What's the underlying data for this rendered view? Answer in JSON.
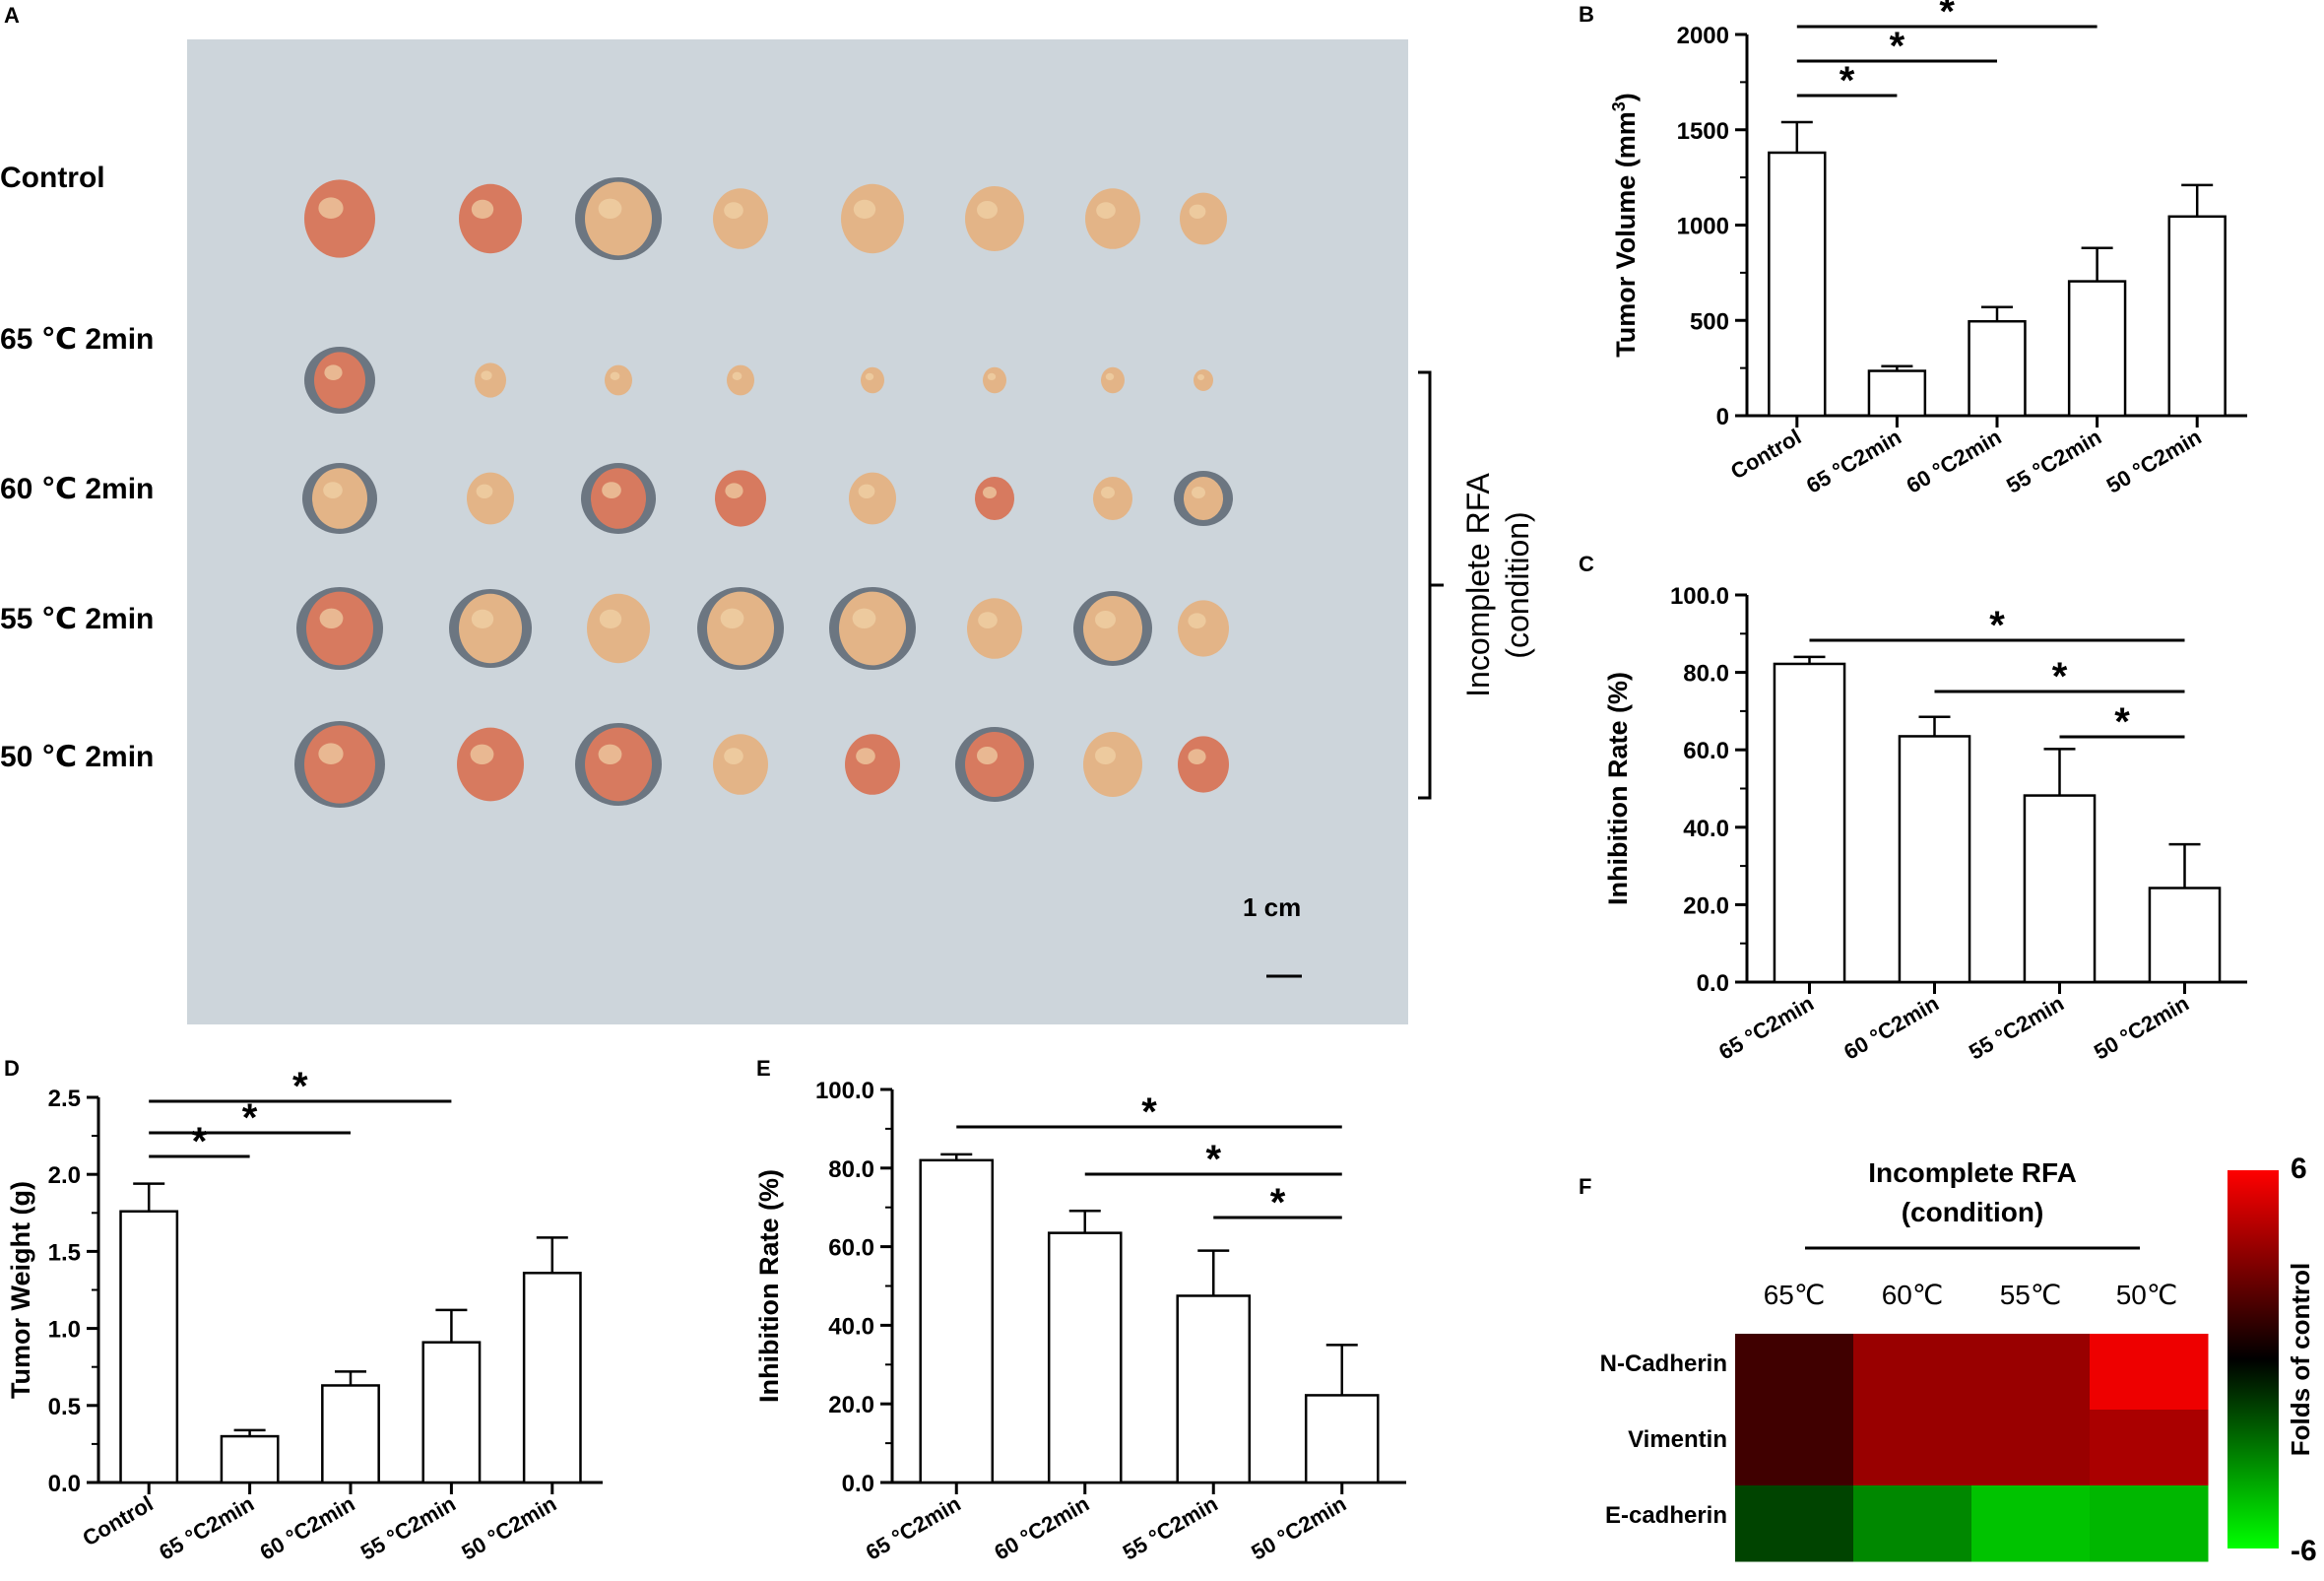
{
  "panels": {
    "A": {
      "letter": "A",
      "row_labels": [
        "Control",
        "65 ℃ 2min",
        "60 ℃ 2min",
        "55 ℃ 2min",
        "50 ℃ 2min"
      ],
      "bracket_label_line1": "Incomplete RFA",
      "bracket_label_line2": "(condition)",
      "scale_label": "1 cm",
      "colors": {
        "paper": "#cdd5db",
        "tumor": "#e3b487",
        "tumor_red": "#d77a5f",
        "shadow": "#4b5563"
      }
    },
    "F": {
      "letter": "F",
      "title_line1": "Incomplete RFA",
      "title_line2": "(condition)",
      "columns": [
        "65℃",
        "60℃",
        "55℃",
        "50℃"
      ],
      "rows": [
        "N-Cadherin",
        "Vimentin",
        "E-cadherin"
      ],
      "colorbar_label": "Folds of control",
      "colorbar_max": "6",
      "colorbar_min": "-6"
    }
  },
  "chart_data": [
    {
      "id": "B",
      "type": "bar",
      "letter": "B",
      "categories": [
        "Control",
        "65 °C2min",
        "60 °C2min",
        "55 °C2min",
        "50 °C2min"
      ],
      "values": [
        1380,
        235,
        495,
        705,
        1045
      ],
      "errors": [
        160,
        25,
        75,
        175,
        165
      ],
      "ylabel": "Tumor Volume (mm",
      "ylabel_sup": "3",
      "ylabel_end": ")",
      "ylim": [
        0,
        2000
      ],
      "ticks": [
        0,
        500,
        1000,
        1500,
        2000
      ],
      "tick_labels": [
        "0",
        "500",
        "1000",
        "1500",
        "2000"
      ],
      "significance": [
        {
          "from": 0,
          "to": 1,
          "label": "*"
        },
        {
          "from": 0,
          "to": 2,
          "label": "*"
        },
        {
          "from": 0,
          "to": 3,
          "label": "*"
        }
      ]
    },
    {
      "id": "C",
      "type": "bar",
      "letter": "C",
      "categories": [
        "65 °C2min",
        "60 °C2min",
        "55 °C2min",
        "50 °C2min"
      ],
      "values": [
        82.2,
        63.5,
        48.2,
        24.3
      ],
      "errors": [
        1.8,
        5.0,
        12.0,
        11.3
      ],
      "ylabel": "Inhibition Rate (%)",
      "ylim": [
        0,
        100
      ],
      "ticks": [
        0,
        20,
        40,
        60,
        80,
        100
      ],
      "tick_labels": [
        "0.0",
        "20.0",
        "40.0",
        "60.0",
        "80.0",
        "100.0"
      ],
      "significance": [
        {
          "from": 0,
          "to": 3,
          "label": "*"
        },
        {
          "from": 1,
          "to": 3,
          "label": "*"
        },
        {
          "from": 2,
          "to": 3,
          "label": "*"
        }
      ]
    },
    {
      "id": "D",
      "type": "bar",
      "letter": "D",
      "categories": [
        "Control",
        "65 °C2min",
        "60 °C2min",
        "55 °C2min",
        "50 °C2min"
      ],
      "values": [
        1.76,
        0.3,
        0.63,
        0.91,
        1.36
      ],
      "errors": [
        0.18,
        0.04,
        0.09,
        0.21,
        0.23
      ],
      "ylabel": "Tumor Weight (g)",
      "ylim": [
        0,
        2.5
      ],
      "ticks": [
        0,
        0.5,
        1.0,
        1.5,
        2.0,
        2.5
      ],
      "tick_labels": [
        "0.0",
        "0.5",
        "1.0",
        "1.5",
        "2.0",
        "2.5"
      ],
      "significance": [
        {
          "from": 0,
          "to": 1,
          "label": "*"
        },
        {
          "from": 0,
          "to": 2,
          "label": "*"
        },
        {
          "from": 0,
          "to": 3,
          "label": "*"
        }
      ]
    },
    {
      "id": "E",
      "type": "bar",
      "letter": "E",
      "categories": [
        "65 °C2min",
        "60 °C2min",
        "55 °C2min",
        "50 °C2min"
      ],
      "values": [
        82.0,
        63.5,
        47.5,
        22.2
      ],
      "errors": [
        1.5,
        5.6,
        11.5,
        12.8
      ],
      "ylabel": "Inhibition Rate (%)",
      "ylim": [
        0,
        100
      ],
      "ticks": [
        0,
        20,
        40,
        60,
        80,
        100
      ],
      "tick_labels": [
        "0.0",
        "20.0",
        "40.0",
        "60.0",
        "80.0",
        "100.0"
      ],
      "significance": [
        {
          "from": 0,
          "to": 3,
          "label": "*"
        },
        {
          "from": 1,
          "to": 3,
          "label": "*"
        },
        {
          "from": 2,
          "to": 3,
          "label": "*"
        }
      ]
    },
    {
      "id": "F",
      "type": "heatmap",
      "columns": [
        "65℃",
        "60℃",
        "55℃",
        "50℃"
      ],
      "rows": [
        "N-Cadherin",
        "Vimentin",
        "E-cadherin"
      ],
      "values": [
        [
          1.5,
          3.6,
          3.6,
          5.6
        ],
        [
          1.5,
          3.6,
          3.6,
          4.0
        ],
        [
          -1.6,
          -3.2,
          -4.6,
          -4.3
        ]
      ],
      "range": [
        -6,
        6
      ]
    }
  ]
}
